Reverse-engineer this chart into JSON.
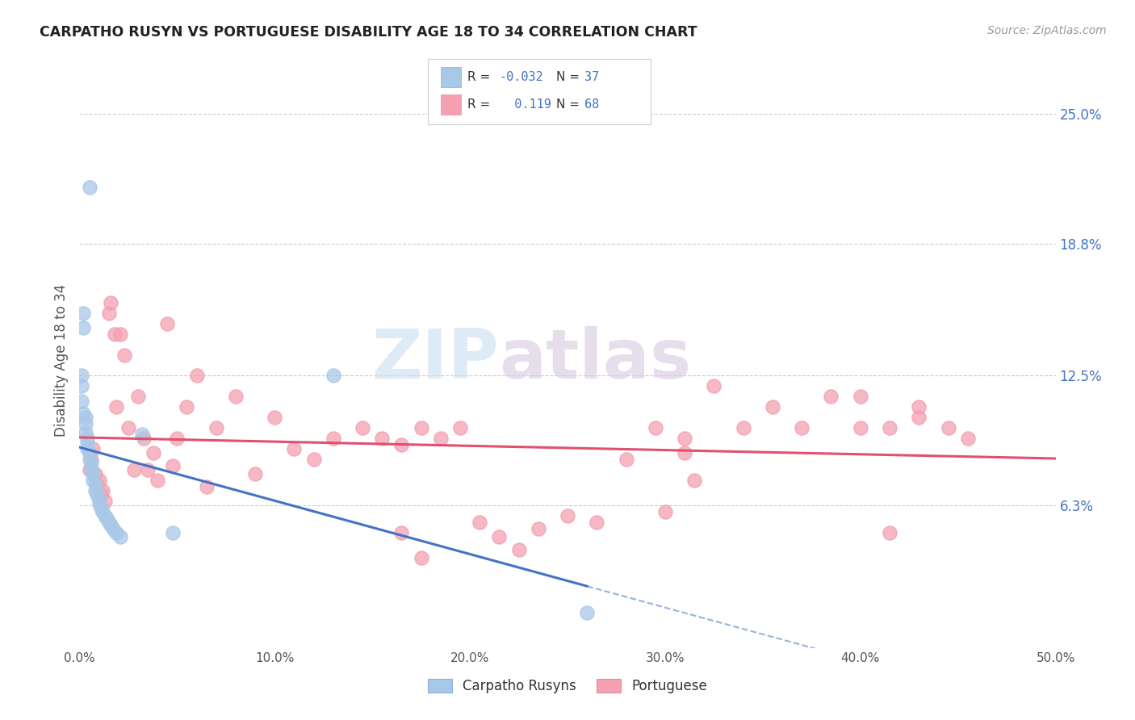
{
  "title": "CARPATHO RUSYN VS PORTUGUESE DISABILITY AGE 18 TO 34 CORRELATION CHART",
  "source": "Source: ZipAtlas.com",
  "ylabel": "Disability Age 18 to 34",
  "xlim": [
    0.0,
    0.5
  ],
  "ylim": [
    -0.005,
    0.27
  ],
  "xticks": [
    0.0,
    0.1,
    0.2,
    0.3,
    0.4,
    0.5
  ],
  "xtick_labels": [
    "0.0%",
    "10.0%",
    "20.0%",
    "30.0%",
    "40.0%",
    "50.0%"
  ],
  "yticks": [
    0.063,
    0.125,
    0.188,
    0.25
  ],
  "ytick_labels": [
    "6.3%",
    "12.5%",
    "18.8%",
    "25.0%"
  ],
  "background_color": "#ffffff",
  "grid_color": "#cccccc",
  "carpatho_color": "#a8c8e8",
  "portuguese_color": "#f4a0b0",
  "carpatho_line_color": "#4472c4",
  "portuguese_line_color": "#e05070",
  "carpatho_points_x": [
    0.005,
    0.002,
    0.002,
    0.001,
    0.001,
    0.001,
    0.002,
    0.003,
    0.003,
    0.003,
    0.004,
    0.004,
    0.004,
    0.005,
    0.005,
    0.006,
    0.006,
    0.007,
    0.007,
    0.008,
    0.008,
    0.009,
    0.01,
    0.01,
    0.011,
    0.012,
    0.013,
    0.014,
    0.015,
    0.016,
    0.017,
    0.019,
    0.021,
    0.032,
    0.048,
    0.13,
    0.26
  ],
  "carpatho_points_y": [
    0.215,
    0.155,
    0.148,
    0.125,
    0.12,
    0.113,
    0.107,
    0.105,
    0.102,
    0.098,
    0.095,
    0.093,
    0.09,
    0.088,
    0.085,
    0.083,
    0.08,
    0.078,
    0.075,
    0.073,
    0.07,
    0.068,
    0.066,
    0.064,
    0.062,
    0.06,
    0.058,
    0.057,
    0.055,
    0.054,
    0.052,
    0.05,
    0.048,
    0.097,
    0.05,
    0.125,
    0.012
  ],
  "portuguese_points_x": [
    0.005,
    0.006,
    0.007,
    0.008,
    0.009,
    0.01,
    0.011,
    0.012,
    0.013,
    0.015,
    0.016,
    0.018,
    0.019,
    0.021,
    0.023,
    0.025,
    0.028,
    0.03,
    0.033,
    0.035,
    0.038,
    0.04,
    0.045,
    0.048,
    0.05,
    0.055,
    0.06,
    0.065,
    0.07,
    0.08,
    0.09,
    0.1,
    0.11,
    0.12,
    0.13,
    0.145,
    0.155,
    0.165,
    0.175,
    0.185,
    0.195,
    0.205,
    0.215,
    0.225,
    0.235,
    0.25,
    0.265,
    0.28,
    0.295,
    0.31,
    0.325,
    0.34,
    0.355,
    0.37,
    0.385,
    0.4,
    0.415,
    0.43,
    0.445,
    0.455,
    0.31,
    0.315,
    0.3,
    0.165,
    0.175,
    0.4,
    0.415,
    0.43
  ],
  "portuguese_points_y": [
    0.08,
    0.085,
    0.09,
    0.078,
    0.073,
    0.075,
    0.068,
    0.07,
    0.065,
    0.155,
    0.16,
    0.145,
    0.11,
    0.145,
    0.135,
    0.1,
    0.08,
    0.115,
    0.095,
    0.08,
    0.088,
    0.075,
    0.15,
    0.082,
    0.095,
    0.11,
    0.125,
    0.072,
    0.1,
    0.115,
    0.078,
    0.105,
    0.09,
    0.085,
    0.095,
    0.1,
    0.095,
    0.092,
    0.1,
    0.095,
    0.1,
    0.055,
    0.048,
    0.042,
    0.052,
    0.058,
    0.055,
    0.085,
    0.1,
    0.088,
    0.12,
    0.1,
    0.11,
    0.1,
    0.115,
    0.1,
    0.05,
    0.11,
    0.1,
    0.095,
    0.095,
    0.075,
    0.06,
    0.05,
    0.038,
    0.115,
    0.1,
    0.105
  ],
  "watermark_text1": "ZIP",
  "watermark_text2": "atlas",
  "watermark_color": "#dde8f0"
}
